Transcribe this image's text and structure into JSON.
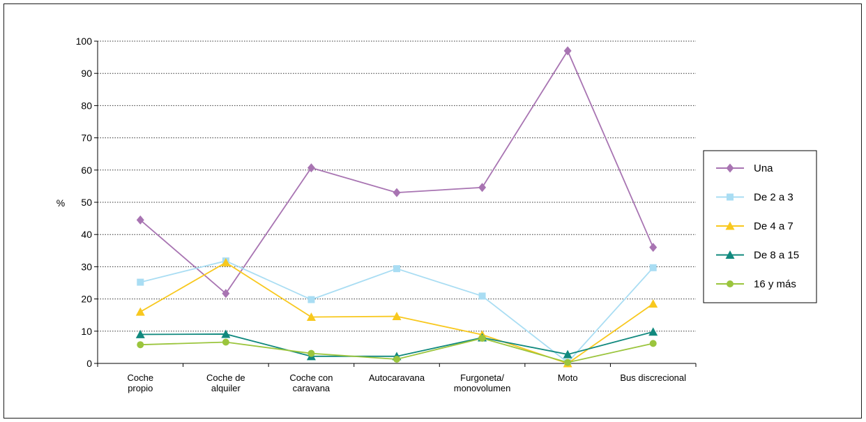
{
  "chart_data": {
    "type": "line",
    "title": "",
    "xlabel": "",
    "ylabel": "%",
    "ylim": [
      0,
      100
    ],
    "yticks": [
      0,
      10,
      20,
      30,
      40,
      50,
      60,
      70,
      80,
      90,
      100
    ],
    "grid": "horizontal dotted",
    "legend_position": "right",
    "categories": [
      [
        "Coche",
        "propio"
      ],
      [
        "Coche de",
        "alquiler"
      ],
      [
        "Coche con",
        "caravana"
      ],
      [
        "Autocaravana"
      ],
      [
        "Furgoneta/",
        "monovolumen"
      ],
      [
        "Moto"
      ],
      [
        "Bus discrecional"
      ]
    ],
    "series": [
      {
        "name": "Una",
        "color": "#A874B2",
        "marker": "diamond",
        "values": [
          44.5,
          21.7,
          60.7,
          53.0,
          54.6,
          97.0,
          36.0
        ]
      },
      {
        "name": "De 2 a 3",
        "color": "#A9DDF3",
        "marker": "square",
        "values": [
          25.2,
          31.8,
          19.8,
          29.4,
          20.9,
          0.3,
          29.7
        ]
      },
      {
        "name": "De 4 a 7",
        "color": "#F8C81E",
        "marker": "triangle",
        "values": [
          16.0,
          31.3,
          14.4,
          14.6,
          8.9,
          0.0,
          18.5
        ]
      },
      {
        "name": "De 8 a 15",
        "color": "#11897E",
        "marker": "triangle",
        "values": [
          9.0,
          9.1,
          2.2,
          2.2,
          8.0,
          2.8,
          9.8
        ]
      },
      {
        "name": "16 y más",
        "color": "#9BC53D",
        "marker": "circle",
        "values": [
          5.8,
          6.6,
          3.1,
          1.3,
          7.8,
          0.3,
          6.2
        ]
      }
    ]
  }
}
